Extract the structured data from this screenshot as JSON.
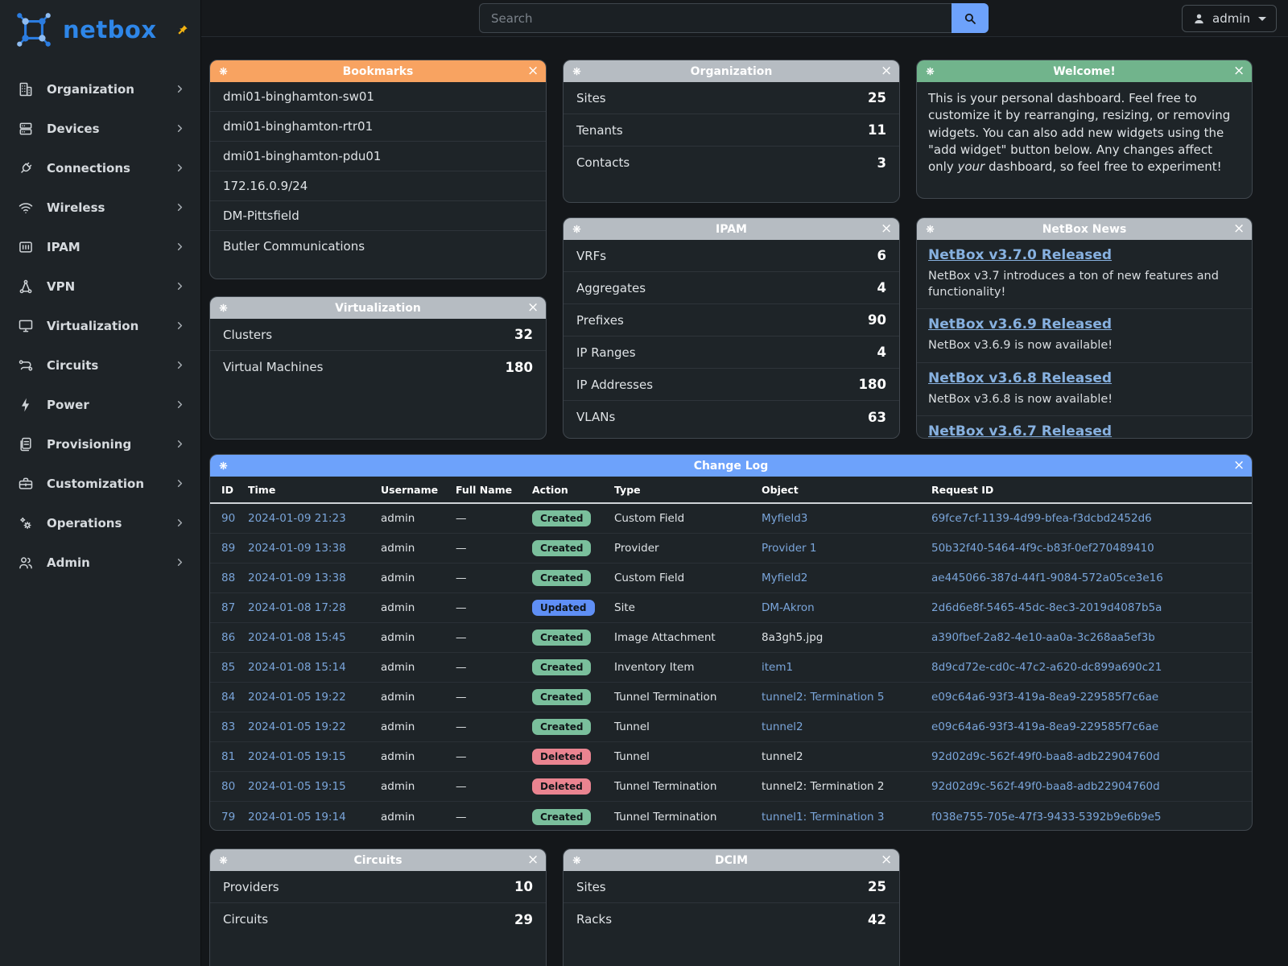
{
  "brand": {
    "name": "netbox",
    "logo_icon": "netbox-logo-icon",
    "pin_icon": "pin-icon"
  },
  "topbar": {
    "search_placeholder": "Search",
    "search_icon": "search-icon",
    "user": {
      "label": "admin",
      "icon": "user-icon",
      "caret_icon": "chevron-down-icon"
    }
  },
  "sidebar": {
    "items": [
      {
        "label": "Organization",
        "icon": "building-icon"
      },
      {
        "label": "Devices",
        "icon": "server-icon"
      },
      {
        "label": "Connections",
        "icon": "plug-icon"
      },
      {
        "label": "Wireless",
        "icon": "wifi-icon"
      },
      {
        "label": "IPAM",
        "icon": "ipam-icon"
      },
      {
        "label": "VPN",
        "icon": "network-icon"
      },
      {
        "label": "Virtualization",
        "icon": "monitor-icon"
      },
      {
        "label": "Circuits",
        "icon": "route-icon"
      },
      {
        "label": "Power",
        "icon": "lightning-icon"
      },
      {
        "label": "Provisioning",
        "icon": "documents-icon"
      },
      {
        "label": "Customization",
        "icon": "toolbox-icon"
      },
      {
        "label": "Operations",
        "icon": "gears-icon"
      },
      {
        "label": "Admin",
        "icon": "users-icon"
      }
    ],
    "chevron_icon": "chevron-right-icon"
  },
  "colors": {
    "header_orange": "#f8a361",
    "header_gray": "#b6bcc2",
    "header_green": "#71b48c",
    "header_blue": "#6da2fb",
    "logo_blue": "#2e86e8",
    "pin_gold": "#f2b211",
    "table_link": "#7aa5da",
    "news_link": "#87b1e0",
    "badge": {
      "created": "#7abf9c",
      "updated": "#5f8ff5",
      "deleted": "#ea8490"
    }
  },
  "widgets": [
    {
      "id": "bookmarks",
      "kind": "list",
      "title": "Bookmarks",
      "header_color": "#f8a361",
      "items": [
        "dmi01-binghamton-sw01",
        "dmi01-binghamton-rtr01",
        "dmi01-binghamton-pdu01",
        "172.16.0.9/24",
        "DM-Pittsfield",
        "Butler Communications"
      ]
    },
    {
      "id": "organization",
      "kind": "counters",
      "title": "Organization",
      "header_color": "#b6bcc2",
      "rows": [
        {
          "label": "Sites",
          "value": "25"
        },
        {
          "label": "Tenants",
          "value": "11"
        },
        {
          "label": "Contacts",
          "value": "3"
        }
      ]
    },
    {
      "id": "welcome",
      "kind": "text",
      "title": "Welcome!",
      "header_color": "#71b48c",
      "text_parts": [
        {
          "text": "This is your personal dashboard. Feel free to customize it by rearranging, resizing, or removing widgets. You can also add new widgets using the \"add widget\" button below. Any changes affect only ",
          "italic": false
        },
        {
          "text": "your",
          "italic": true
        },
        {
          "text": " dashboard, so feel free to experiment!",
          "italic": false
        }
      ]
    },
    {
      "id": "virtualization",
      "kind": "counters",
      "title": "Virtualization",
      "header_color": "#b6bcc2",
      "rows": [
        {
          "label": "Clusters",
          "value": "32"
        },
        {
          "label": "Virtual Machines",
          "value": "180"
        }
      ]
    },
    {
      "id": "ipam",
      "kind": "counters",
      "title": "IPAM",
      "header_color": "#b6bcc2",
      "rows": [
        {
          "label": "VRFs",
          "value": "6"
        },
        {
          "label": "Aggregates",
          "value": "4"
        },
        {
          "label": "Prefixes",
          "value": "90"
        },
        {
          "label": "IP Ranges",
          "value": "4"
        },
        {
          "label": "IP Addresses",
          "value": "180"
        },
        {
          "label": "VLANs",
          "value": "63"
        }
      ]
    },
    {
      "id": "news",
      "kind": "news",
      "title": "NetBox News",
      "header_color": "#b6bcc2",
      "items": [
        {
          "title": "NetBox v3.7.0 Released",
          "desc": "NetBox v3.7 introduces a ton of new features and functionality!"
        },
        {
          "title": "NetBox v3.6.9 Released",
          "desc": "NetBox v3.6.9 is now available!"
        },
        {
          "title": "NetBox v3.6.8 Released",
          "desc": "NetBox v3.6.8 is now available!"
        },
        {
          "title": "NetBox v3.6.7 Released",
          "desc": ""
        }
      ]
    },
    {
      "id": "changelog",
      "kind": "table",
      "title": "Change Log",
      "header_color": "#6da2fb",
      "columns": [
        "ID",
        "Time",
        "Username",
        "Full Name",
        "Action",
        "Type",
        "Object",
        "Request ID"
      ],
      "rows": [
        {
          "id": "90",
          "time": "2024-01-09 21:23",
          "username": "admin",
          "full_name": "—",
          "action": "Created",
          "type": "Custom Field",
          "object": "Myfield3",
          "object_link": true,
          "request_id": "69fce7cf-1139-4d99-bfea-f3dcbd2452d6"
        },
        {
          "id": "89",
          "time": "2024-01-09 13:38",
          "username": "admin",
          "full_name": "—",
          "action": "Created",
          "type": "Provider",
          "object": "Provider 1",
          "object_link": true,
          "request_id": "50b32f40-5464-4f9c-b83f-0ef270489410"
        },
        {
          "id": "88",
          "time": "2024-01-09 13:38",
          "username": "admin",
          "full_name": "—",
          "action": "Created",
          "type": "Custom Field",
          "object": "Myfield2",
          "object_link": true,
          "request_id": "ae445066-387d-44f1-9084-572a05ce3e16"
        },
        {
          "id": "87",
          "time": "2024-01-08 17:28",
          "username": "admin",
          "full_name": "—",
          "action": "Updated",
          "type": "Site",
          "object": "DM-Akron",
          "object_link": true,
          "request_id": "2d6d6e8f-5465-45dc-8ec3-2019d4087b5a"
        },
        {
          "id": "86",
          "time": "2024-01-08 15:45",
          "username": "admin",
          "full_name": "—",
          "action": "Created",
          "type": "Image Attachment",
          "object": "8a3gh5.jpg",
          "object_link": false,
          "request_id": "a390fbef-2a82-4e10-aa0a-3c268aa5ef3b"
        },
        {
          "id": "85",
          "time": "2024-01-08 15:14",
          "username": "admin",
          "full_name": "—",
          "action": "Created",
          "type": "Inventory Item",
          "object": "item1",
          "object_link": true,
          "request_id": "8d9cd72e-cd0c-47c2-a620-dc899a690c21"
        },
        {
          "id": "84",
          "time": "2024-01-05 19:22",
          "username": "admin",
          "full_name": "—",
          "action": "Created",
          "type": "Tunnel Termination",
          "object": "tunnel2: Termination 5",
          "object_link": true,
          "request_id": "e09c64a6-93f3-419a-8ea9-229585f7c6ae"
        },
        {
          "id": "83",
          "time": "2024-01-05 19:22",
          "username": "admin",
          "full_name": "—",
          "action": "Created",
          "type": "Tunnel",
          "object": "tunnel2",
          "object_link": true,
          "request_id": "e09c64a6-93f3-419a-8ea9-229585f7c6ae"
        },
        {
          "id": "81",
          "time": "2024-01-05 19:15",
          "username": "admin",
          "full_name": "—",
          "action": "Deleted",
          "type": "Tunnel",
          "object": "tunnel2",
          "object_link": false,
          "request_id": "92d02d9c-562f-49f0-baa8-adb22904760d"
        },
        {
          "id": "80",
          "time": "2024-01-05 19:15",
          "username": "admin",
          "full_name": "—",
          "action": "Deleted",
          "type": "Tunnel Termination",
          "object": "tunnel2: Termination 2",
          "object_link": false,
          "request_id": "92d02d9c-562f-49f0-baa8-adb22904760d"
        },
        {
          "id": "79",
          "time": "2024-01-05 19:14",
          "username": "admin",
          "full_name": "—",
          "action": "Created",
          "type": "Tunnel Termination",
          "object": "tunnel1: Termination 3",
          "object_link": true,
          "request_id": "f038e755-705e-47f3-9433-5392b9e6b9e5"
        }
      ]
    },
    {
      "id": "circuits",
      "kind": "counters",
      "title": "Circuits",
      "header_color": "#b6bcc2",
      "rows": [
        {
          "label": "Providers",
          "value": "10"
        },
        {
          "label": "Circuits",
          "value": "29"
        }
      ]
    },
    {
      "id": "dcim",
      "kind": "counters",
      "title": "DCIM",
      "header_color": "#b6bcc2",
      "rows": [
        {
          "label": "Sites",
          "value": "25"
        },
        {
          "label": "Racks",
          "value": "42"
        }
      ]
    }
  ],
  "widget_header_icons": {
    "config": "gear-icon",
    "close": "close-icon"
  }
}
